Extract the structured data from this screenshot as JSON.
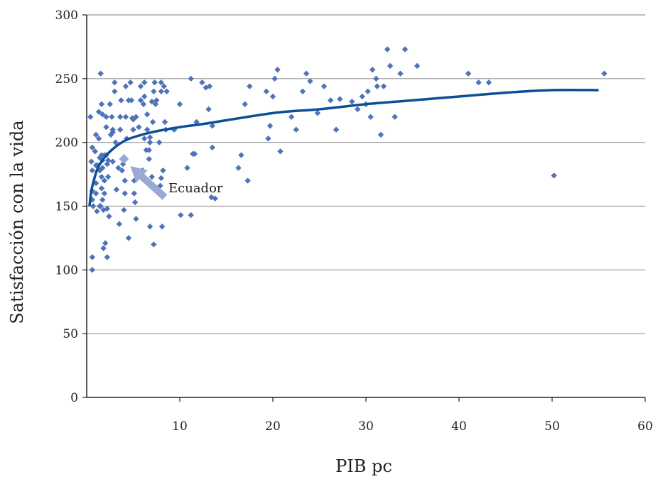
{
  "chart_data": {
    "type": "scatter",
    "xlabel": "PIB pc",
    "ylabel": "Satisfacción con la vida",
    "xlim": [
      0,
      60
    ],
    "ylim": [
      0,
      300
    ],
    "x_ticks": [
      10,
      20,
      30,
      40,
      50,
      60
    ],
    "y_ticks": [
      0,
      50,
      100,
      150,
      200,
      250,
      300
    ],
    "grid": "horizontal",
    "colors": {
      "points": "#4f72b8",
      "trend": "#0d4f96",
      "highlight": "#9aa9d4",
      "grid": "#999999",
      "axis": "#222222"
    },
    "series": [
      {
        "type": "scatter",
        "points": [
          [
            0.4,
            220
          ],
          [
            0.6,
            110
          ],
          [
            0.6,
            100
          ],
          [
            0.6,
            196
          ],
          [
            0.5,
            185
          ],
          [
            0.6,
            178
          ],
          [
            0.6,
            162
          ],
          [
            0.6,
            155
          ],
          [
            0.7,
            150
          ],
          [
            0.9,
            193
          ],
          [
            1.0,
            206
          ],
          [
            1.0,
            182
          ],
          [
            1.0,
            168
          ],
          [
            1.0,
            160
          ],
          [
            1.1,
            146
          ],
          [
            1.2,
            182
          ],
          [
            1.3,
            224
          ],
          [
            1.3,
            203
          ],
          [
            1.4,
            188
          ],
          [
            1.4,
            178
          ],
          [
            1.4,
            150
          ],
          [
            1.5,
            254
          ],
          [
            1.5,
            150
          ],
          [
            1.6,
            230
          ],
          [
            1.6,
            190
          ],
          [
            1.6,
            173
          ],
          [
            1.6,
            164
          ],
          [
            1.7,
            222
          ],
          [
            1.7,
            186
          ],
          [
            1.7,
            180
          ],
          [
            1.7,
            155
          ],
          [
            1.8,
            147
          ],
          [
            1.8,
            117
          ],
          [
            1.9,
            190
          ],
          [
            1.9,
            170
          ],
          [
            1.9,
            160
          ],
          [
            2.0,
            121
          ],
          [
            2.1,
            220
          ],
          [
            2.1,
            212
          ],
          [
            2.1,
            190
          ],
          [
            2.2,
            183
          ],
          [
            2.2,
            148
          ],
          [
            2.2,
            110
          ],
          [
            2.3,
            186
          ],
          [
            2.3,
            173
          ],
          [
            2.4,
            142
          ],
          [
            2.5,
            230
          ],
          [
            2.6,
            206
          ],
          [
            2.7,
            220
          ],
          [
            2.8,
            210
          ],
          [
            2.8,
            185
          ],
          [
            2.8,
            208
          ],
          [
            3.0,
            240
          ],
          [
            3.0,
            247
          ],
          [
            3.1,
            200
          ],
          [
            3.2,
            163
          ],
          [
            3.4,
            180
          ],
          [
            3.5,
            136
          ],
          [
            3.6,
            210
          ],
          [
            3.6,
            220
          ],
          [
            3.7,
            233
          ],
          [
            3.8,
            178
          ],
          [
            3.9,
            183
          ],
          [
            4.0,
            187
          ],
          [
            4.0,
            147
          ],
          [
            4.1,
            160
          ],
          [
            4.1,
            170
          ],
          [
            4.2,
            244
          ],
          [
            4.2,
            220
          ],
          [
            4.3,
            203
          ],
          [
            4.5,
            233
          ],
          [
            4.5,
            125
          ],
          [
            4.7,
            247
          ],
          [
            4.8,
            233
          ],
          [
            4.9,
            219
          ],
          [
            5.0,
            218
          ],
          [
            5.0,
            210
          ],
          [
            5.1,
            170
          ],
          [
            5.1,
            160
          ],
          [
            5.2,
            153
          ],
          [
            5.3,
            140
          ],
          [
            5.3,
            220
          ],
          [
            5.6,
            212
          ],
          [
            5.8,
            233
          ],
          [
            5.8,
            244
          ],
          [
            6.0,
            178
          ],
          [
            6.1,
            230
          ],
          [
            6.2,
            203
          ],
          [
            6.2,
            247
          ],
          [
            6.2,
            236
          ],
          [
            6.4,
            194
          ],
          [
            6.5,
            222
          ],
          [
            6.5,
            210
          ],
          [
            6.7,
            187
          ],
          [
            6.7,
            194
          ],
          [
            6.8,
            204
          ],
          [
            6.8,
            134
          ],
          [
            6.8,
            200
          ],
          [
            7.0,
            173
          ],
          [
            7.0,
            232
          ],
          [
            7.1,
            216
          ],
          [
            7.2,
            240
          ],
          [
            7.2,
            120
          ],
          [
            7.3,
            247
          ],
          [
            7.4,
            230
          ],
          [
            7.5,
            233
          ],
          [
            7.8,
            200
          ],
          [
            7.9,
            166
          ],
          [
            8.0,
            247
          ],
          [
            8.0,
            240
          ],
          [
            8.0,
            172
          ],
          [
            8.1,
            134
          ],
          [
            8.2,
            178
          ],
          [
            8.3,
            244
          ],
          [
            8.4,
            216
          ],
          [
            8.5,
            210
          ],
          [
            8.6,
            240
          ],
          [
            9.4,
            210
          ],
          [
            10.0,
            230
          ],
          [
            10.1,
            143
          ],
          [
            10.8,
            180
          ],
          [
            11.2,
            250
          ],
          [
            11.2,
            143
          ],
          [
            11.4,
            191
          ],
          [
            11.6,
            191
          ],
          [
            11.8,
            216
          ],
          [
            12.4,
            247
          ],
          [
            12.8,
            243
          ],
          [
            13.1,
            226
          ],
          [
            13.2,
            244
          ],
          [
            13.5,
            196
          ],
          [
            13.4,
            157
          ],
          [
            13.8,
            156
          ],
          [
            13.5,
            213
          ],
          [
            16.3,
            180
          ],
          [
            16.6,
            190
          ],
          [
            17.0,
            230
          ],
          [
            17.3,
            170
          ],
          [
            17.5,
            244
          ],
          [
            19.3,
            240
          ],
          [
            19.5,
            203
          ],
          [
            19.7,
            213
          ],
          [
            20.0,
            236
          ],
          [
            20.2,
            250
          ],
          [
            20.8,
            193
          ],
          [
            20.5,
            257
          ],
          [
            22.0,
            220
          ],
          [
            22.5,
            210
          ],
          [
            23.2,
            240
          ],
          [
            23.6,
            254
          ],
          [
            24.0,
            248
          ],
          [
            24.8,
            223
          ],
          [
            25.5,
            244
          ],
          [
            26.2,
            233
          ],
          [
            26.8,
            210
          ],
          [
            27.2,
            234
          ],
          [
            28.5,
            232
          ],
          [
            29.1,
            226
          ],
          [
            29.6,
            236
          ],
          [
            30.0,
            230
          ],
          [
            30.2,
            240
          ],
          [
            30.5,
            220
          ],
          [
            30.7,
            257
          ],
          [
            31.1,
            250
          ],
          [
            31.2,
            244
          ],
          [
            31.6,
            206
          ],
          [
            31.9,
            244
          ],
          [
            32.3,
            273
          ],
          [
            32.6,
            260
          ],
          [
            33.1,
            220
          ],
          [
            33.7,
            254
          ],
          [
            34.2,
            273
          ],
          [
            35.5,
            260
          ],
          [
            41.0,
            254
          ],
          [
            42.1,
            247
          ],
          [
            43.2,
            247
          ],
          [
            50.2,
            174
          ],
          [
            55.6,
            254
          ]
        ]
      },
      {
        "type": "highlight",
        "name": "Ecuador",
        "points": [
          [
            4.0,
            187
          ]
        ]
      }
    ],
    "trend_line": {
      "type": "logarithmic",
      "points": [
        [
          0.3,
          150
        ],
        [
          0.5,
          162
        ],
        [
          0.8,
          171
        ],
        [
          1.2,
          180
        ],
        [
          2,
          189
        ],
        [
          3,
          196
        ],
        [
          4,
          201
        ],
        [
          5,
          204
        ],
        [
          7,
          208
        ],
        [
          10,
          212
        ],
        [
          13,
          215
        ],
        [
          20,
          223
        ],
        [
          25,
          226
        ],
        [
          30,
          230
        ],
        [
          35,
          233
        ],
        [
          40,
          236
        ],
        [
          45,
          239
        ],
        [
          50,
          241
        ],
        [
          55,
          241
        ]
      ]
    },
    "annotations": [
      {
        "text": "Ecuador",
        "points_to": [
          4.0,
          187
        ]
      }
    ]
  }
}
